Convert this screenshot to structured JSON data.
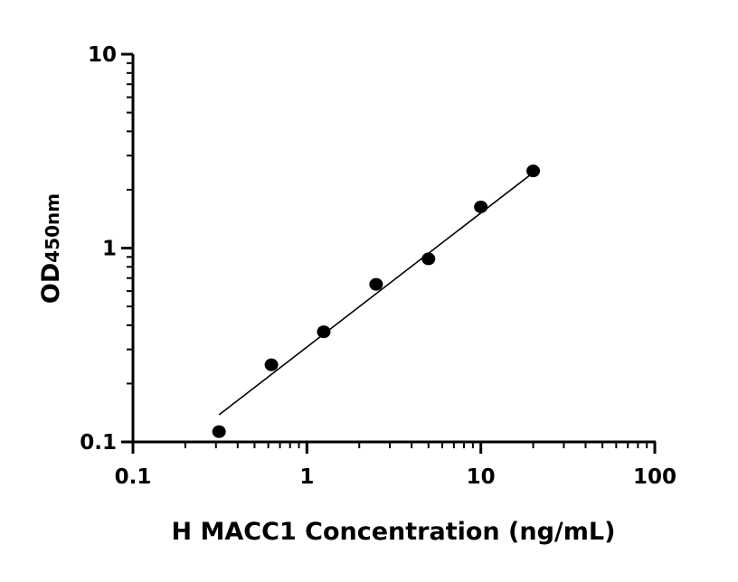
{
  "chart_data": {
    "type": "scatter",
    "title": "",
    "xlabel": "H MACC1 Concentration (ng/mL)",
    "ylabel_main": "OD",
    "ylabel_sub": "450nm",
    "xscale": "log",
    "yscale": "log",
    "xlim": [
      0.1,
      100
    ],
    "ylim": [
      0.1,
      10
    ],
    "xticks": [
      0.1,
      1,
      10,
      100
    ],
    "xtick_labels": [
      "0.1",
      "1",
      "10",
      "100"
    ],
    "yticks": [
      0.1,
      1,
      10
    ],
    "ytick_labels": [
      "0.1",
      "1",
      "10"
    ],
    "grid": false,
    "points": [
      {
        "x": 0.3125,
        "y": 0.113
      },
      {
        "x": 0.625,
        "y": 0.25
      },
      {
        "x": 1.25,
        "y": 0.37
      },
      {
        "x": 2.5,
        "y": 0.65
      },
      {
        "x": 5,
        "y": 0.88
      },
      {
        "x": 10,
        "y": 1.63
      },
      {
        "x": 20,
        "y": 2.5
      }
    ],
    "fit_line": [
      {
        "x": 0.3125,
        "y": 0.138
      },
      {
        "x": 20,
        "y": 2.45
      }
    ],
    "colors": {
      "points": "#000000",
      "line": "#000000"
    }
  }
}
